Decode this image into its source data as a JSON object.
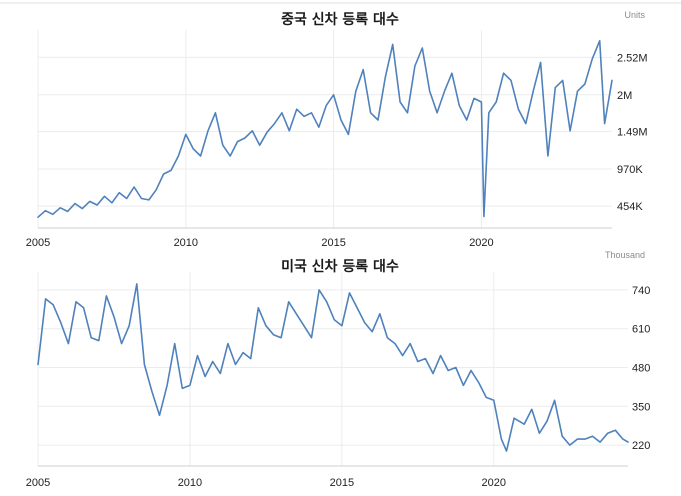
{
  "chart_data": [
    {
      "type": "line",
      "title": "중국 신차 등록 대수",
      "unit_label": "Units",
      "xlabel": "",
      "ylabel": "",
      "x_ticks": [
        "2005",
        "2010",
        "2015",
        "2020"
      ],
      "y_ticks": [
        "454K",
        "970K",
        "1.49M",
        "2M",
        "2.52M"
      ],
      "y_tick_values": [
        454000,
        970000,
        1490000,
        2000000,
        2520000
      ],
      "x_range": [
        "2005-01",
        "2024-06"
      ],
      "y_range": [
        150000,
        2900000
      ],
      "grid": true,
      "color": "#4f81bd",
      "series": [
        {
          "name": "",
          "points": [
            [
              "2005-01",
              300000
            ],
            [
              "2005-04",
              390000
            ],
            [
              "2005-07",
              340000
            ],
            [
              "2005-10",
              430000
            ],
            [
              "2006-01",
              380000
            ],
            [
              "2006-04",
              490000
            ],
            [
              "2006-07",
              420000
            ],
            [
              "2006-10",
              520000
            ],
            [
              "2007-01",
              470000
            ],
            [
              "2007-04",
              590000
            ],
            [
              "2007-07",
              500000
            ],
            [
              "2007-10",
              640000
            ],
            [
              "2008-01",
              560000
            ],
            [
              "2008-04",
              720000
            ],
            [
              "2008-07",
              560000
            ],
            [
              "2008-10",
              540000
            ],
            [
              "2009-01",
              680000
            ],
            [
              "2009-04",
              900000
            ],
            [
              "2009-07",
              950000
            ],
            [
              "2009-10",
              1150000
            ],
            [
              "2010-01",
              1450000
            ],
            [
              "2010-04",
              1250000
            ],
            [
              "2010-07",
              1150000
            ],
            [
              "2010-10",
              1500000
            ],
            [
              "2011-01",
              1750000
            ],
            [
              "2011-04",
              1300000
            ],
            [
              "2011-07",
              1150000
            ],
            [
              "2011-10",
              1350000
            ],
            [
              "2012-01",
              1400000
            ],
            [
              "2012-04",
              1500000
            ],
            [
              "2012-07",
              1300000
            ],
            [
              "2012-10",
              1480000
            ],
            [
              "2013-01",
              1600000
            ],
            [
              "2013-04",
              1750000
            ],
            [
              "2013-07",
              1500000
            ],
            [
              "2013-10",
              1800000
            ],
            [
              "2014-01",
              1700000
            ],
            [
              "2014-04",
              1750000
            ],
            [
              "2014-07",
              1550000
            ],
            [
              "2014-10",
              1850000
            ],
            [
              "2015-01",
              2000000
            ],
            [
              "2015-04",
              1650000
            ],
            [
              "2015-07",
              1450000
            ],
            [
              "2015-10",
              2050000
            ],
            [
              "2016-01",
              2350000
            ],
            [
              "2016-04",
              1750000
            ],
            [
              "2016-07",
              1650000
            ],
            [
              "2016-10",
              2250000
            ],
            [
              "2017-01",
              2700000
            ],
            [
              "2017-04",
              1900000
            ],
            [
              "2017-07",
              1750000
            ],
            [
              "2017-10",
              2400000
            ],
            [
              "2018-01",
              2650000
            ],
            [
              "2018-04",
              2050000
            ],
            [
              "2018-07",
              1750000
            ],
            [
              "2018-10",
              2050000
            ],
            [
              "2019-01",
              2300000
            ],
            [
              "2019-04",
              1850000
            ],
            [
              "2019-07",
              1650000
            ],
            [
              "2019-10",
              1950000
            ],
            [
              "2020-01",
              1900000
            ],
            [
              "2020-02",
              310000
            ],
            [
              "2020-04",
              1750000
            ],
            [
              "2020-07",
              1900000
            ],
            [
              "2020-10",
              2300000
            ],
            [
              "2021-01",
              2200000
            ],
            [
              "2021-04",
              1800000
            ],
            [
              "2021-07",
              1600000
            ],
            [
              "2021-10",
              2050000
            ],
            [
              "2022-01",
              2450000
            ],
            [
              "2022-04",
              1150000
            ],
            [
              "2022-07",
              2100000
            ],
            [
              "2022-10",
              2200000
            ],
            [
              "2023-01",
              1500000
            ],
            [
              "2023-04",
              2050000
            ],
            [
              "2023-07",
              2150000
            ],
            [
              "2023-10",
              2500000
            ],
            [
              "2024-01",
              2750000
            ],
            [
              "2024-03",
              1600000
            ],
            [
              "2024-06",
              2200000
            ]
          ]
        }
      ]
    },
    {
      "type": "line",
      "title": "미국 신차 등록 대수",
      "unit_label": "Thousand",
      "xlabel": "",
      "ylabel": "",
      "x_ticks": [
        "2005",
        "2010",
        "2015",
        "2020"
      ],
      "y_ticks": [
        "220",
        "350",
        "480",
        "610",
        "740"
      ],
      "y_tick_values": [
        220,
        350,
        480,
        610,
        740
      ],
      "x_range": [
        "2005-01",
        "2024-06"
      ],
      "y_range": [
        150,
        800
      ],
      "grid": true,
      "color": "#4f81bd",
      "series": [
        {
          "name": "",
          "points": [
            [
              "2005-01",
              490
            ],
            [
              "2005-04",
              710
            ],
            [
              "2005-07",
              690
            ],
            [
              "2005-10",
              630
            ],
            [
              "2006-01",
              560
            ],
            [
              "2006-04",
              700
            ],
            [
              "2006-07",
              680
            ],
            [
              "2006-10",
              580
            ],
            [
              "2007-01",
              570
            ],
            [
              "2007-04",
              720
            ],
            [
              "2007-07",
              650
            ],
            [
              "2007-10",
              560
            ],
            [
              "2008-01",
              620
            ],
            [
              "2008-04",
              760
            ],
            [
              "2008-07",
              490
            ],
            [
              "2008-10",
              400
            ],
            [
              "2009-01",
              320
            ],
            [
              "2009-04",
              420
            ],
            [
              "2009-07",
              560
            ],
            [
              "2009-10",
              410
            ],
            [
              "2010-01",
              420
            ],
            [
              "2010-04",
              520
            ],
            [
              "2010-07",
              450
            ],
            [
              "2010-10",
              500
            ],
            [
              "2011-01",
              460
            ],
            [
              "2011-04",
              560
            ],
            [
              "2011-07",
              490
            ],
            [
              "2011-10",
              530
            ],
            [
              "2012-01",
              510
            ],
            [
              "2012-04",
              680
            ],
            [
              "2012-07",
              620
            ],
            [
              "2012-10",
              590
            ],
            [
              "2013-01",
              580
            ],
            [
              "2013-04",
              700
            ],
            [
              "2013-07",
              660
            ],
            [
              "2013-10",
              620
            ],
            [
              "2014-01",
              580
            ],
            [
              "2014-04",
              740
            ],
            [
              "2014-07",
              700
            ],
            [
              "2014-10",
              640
            ],
            [
              "2015-01",
              620
            ],
            [
              "2015-04",
              730
            ],
            [
              "2015-07",
              680
            ],
            [
              "2015-10",
              630
            ],
            [
              "2016-01",
              600
            ],
            [
              "2016-04",
              660
            ],
            [
              "2016-07",
              580
            ],
            [
              "2016-10",
              560
            ],
            [
              "2017-01",
              520
            ],
            [
              "2017-04",
              560
            ],
            [
              "2017-07",
              500
            ],
            [
              "2017-10",
              510
            ],
            [
              "2018-01",
              460
            ],
            [
              "2018-04",
              520
            ],
            [
              "2018-07",
              470
            ],
            [
              "2018-10",
              480
            ],
            [
              "2019-01",
              420
            ],
            [
              "2019-04",
              470
            ],
            [
              "2019-07",
              430
            ],
            [
              "2019-10",
              380
            ],
            [
              "2020-01",
              370
            ],
            [
              "2020-04",
              240
            ],
            [
              "2020-06",
              200
            ],
            [
              "2020-09",
              310
            ],
            [
              "2021-01",
              290
            ],
            [
              "2021-04",
              340
            ],
            [
              "2021-07",
              260
            ],
            [
              "2021-10",
              300
            ],
            [
              "2022-01",
              370
            ],
            [
              "2022-04",
              250
            ],
            [
              "2022-07",
              220
            ],
            [
              "2022-10",
              240
            ],
            [
              "2023-01",
              240
            ],
            [
              "2023-04",
              250
            ],
            [
              "2023-07",
              230
            ],
            [
              "2023-10",
              260
            ],
            [
              "2024-01",
              270
            ],
            [
              "2024-04",
              240
            ],
            [
              "2024-06",
              230
            ]
          ]
        }
      ]
    }
  ]
}
